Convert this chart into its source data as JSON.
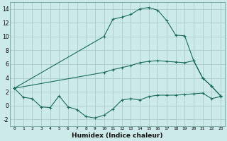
{
  "xlabel": "Humidex (Indice chaleur)",
  "background_color": "#cceaea",
  "grid_color": "#aacccc",
  "line_color": "#1a6b5a",
  "xlim": [
    -0.5,
    23.5
  ],
  "ylim": [
    -3,
    15
  ],
  "yticks": [
    -2,
    0,
    2,
    4,
    6,
    8,
    10,
    12,
    14
  ],
  "xticks": [
    0,
    1,
    2,
    3,
    4,
    5,
    6,
    7,
    8,
    9,
    10,
    11,
    12,
    13,
    14,
    15,
    16,
    17,
    18,
    19,
    20,
    21,
    22,
    23
  ],
  "line1_x": [
    0,
    1,
    2,
    3,
    4,
    5,
    6,
    7,
    8,
    9,
    10,
    11,
    12,
    13,
    14,
    15,
    16,
    17,
    18,
    19,
    20,
    21,
    22,
    23
  ],
  "line1_y": [
    2.5,
    1.2,
    1.0,
    -0.2,
    -0.3,
    1.4,
    -0.2,
    -0.6,
    -1.6,
    -1.8,
    -1.4,
    -0.5,
    0.8,
    1.0,
    0.8,
    1.3,
    1.5,
    1.5,
    1.5,
    1.6,
    1.7,
    1.8,
    1.0,
    1.3
  ],
  "line2_x": [
    0,
    10,
    11,
    12,
    13,
    14,
    15,
    16,
    17,
    18,
    19,
    20,
    21,
    22,
    23
  ],
  "line2_y": [
    2.5,
    10.0,
    12.5,
    12.8,
    13.2,
    14.0,
    14.2,
    13.8,
    12.3,
    10.2,
    10.1,
    6.5,
    4.0,
    2.8,
    1.4
  ],
  "line3_x": [
    0,
    10,
    11,
    12,
    13,
    14,
    15,
    16,
    17,
    18,
    19,
    20,
    21,
    22,
    23
  ],
  "line3_y": [
    2.5,
    4.8,
    5.2,
    5.5,
    5.8,
    6.2,
    6.4,
    6.5,
    6.4,
    6.3,
    6.2,
    6.5,
    4.0,
    2.8,
    1.4
  ]
}
